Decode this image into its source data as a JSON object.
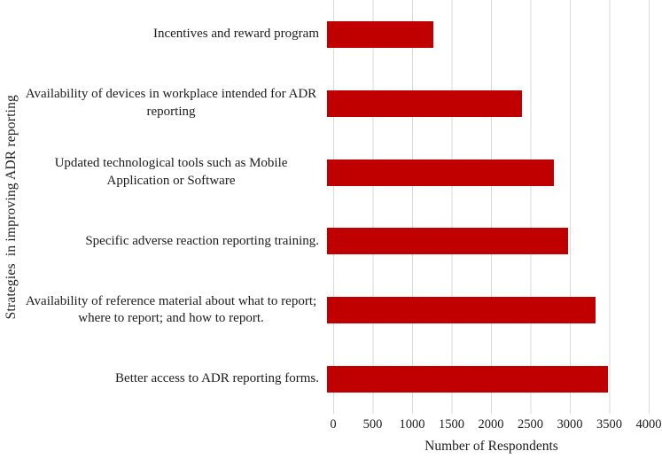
{
  "chart_data": {
    "type": "bar",
    "orientation": "horizontal",
    "title": "",
    "xlabel": "Number of Respondents",
    "ylabel": "Strategies  in improving ADR reporting",
    "categories": [
      "Incentives and reward program",
      "Availability of devices in workplace intended for ADR reporting",
      "Updated technological tools such as Mobile Application or Software",
      "Specific adverse reaction reporting training.",
      "Availability of reference material about what to report; where to report; and how to report.",
      "Better access to ADR reporting forms."
    ],
    "values": [
      1350,
      2470,
      2880,
      3060,
      3410,
      3560
    ],
    "xlim": [
      0,
      4000
    ],
    "xticks": [
      0,
      500,
      1000,
      1500,
      2000,
      2500,
      3000,
      3500,
      4000
    ],
    "grid": "vertical",
    "legend": "none",
    "bar_color": "#c00000",
    "gridline_color": "#d9d9d9",
    "text_color": "#1c1c1c",
    "background_color": "#ffffff"
  }
}
